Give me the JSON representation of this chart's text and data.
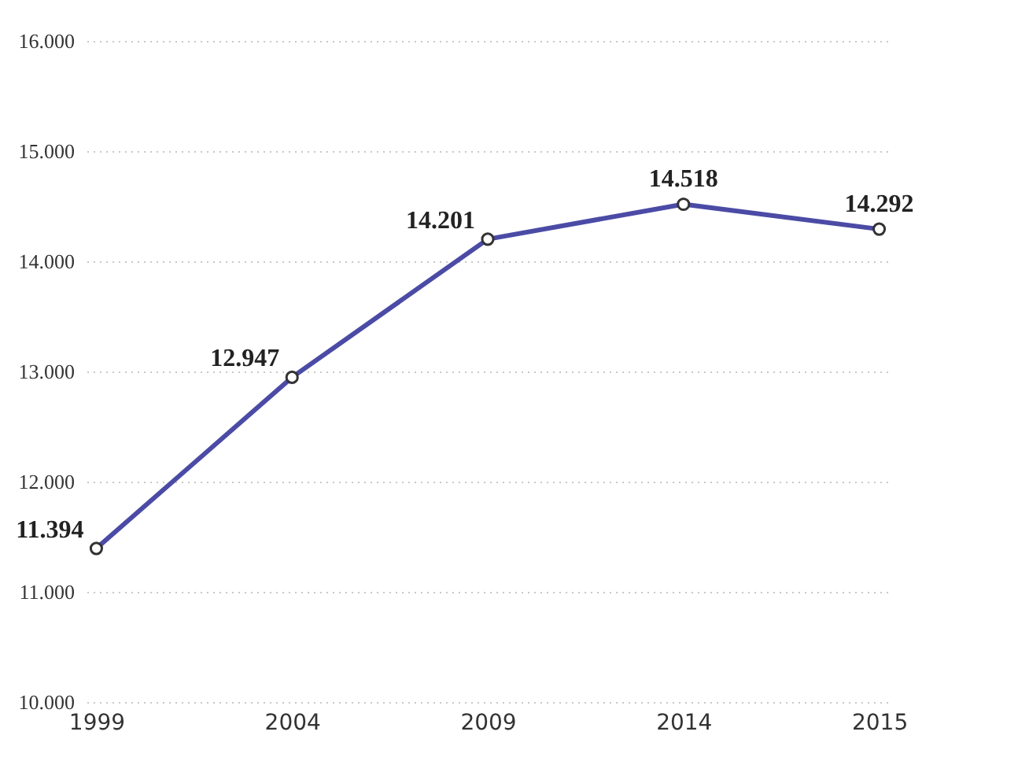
{
  "chart_data": {
    "type": "line",
    "categories": [
      "1999",
      "2004",
      "2009",
      "2014",
      "2015"
    ],
    "series": [
      {
        "color": "#4b4ba6",
        "values": [
          11394,
          12947,
          14201,
          14518,
          14292
        ]
      }
    ],
    "value_labels": [
      "11.394",
      "12.947",
      "14.201",
      "14.518",
      "14.292"
    ],
    "ylim": [
      10000,
      16000
    ],
    "yticks": [
      {
        "value": 10000,
        "label": "10.000"
      },
      {
        "value": 11000,
        "label": "11.000"
      },
      {
        "value": 12000,
        "label": "12.000"
      },
      {
        "value": 13000,
        "label": "13.000"
      },
      {
        "value": 14000,
        "label": "14.000"
      },
      {
        "value": 15000,
        "label": "15.000"
      },
      {
        "value": 16000,
        "label": "16.000"
      }
    ],
    "marker": "circle",
    "line_style": "solid",
    "grid": "y"
  }
}
